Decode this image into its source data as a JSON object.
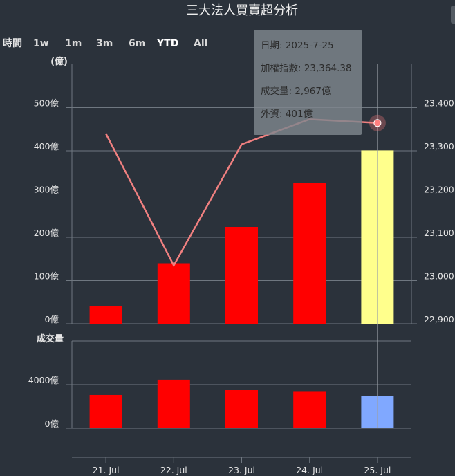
{
  "chart_data": {
    "type": "bar",
    "title": "三大法人買賣超分析",
    "range_selector": {
      "label": "時間",
      "buttons": [
        "1w",
        "1m",
        "3m",
        "6m",
        "YTD",
        "All"
      ],
      "selected": "YTD"
    },
    "categories": [
      "21. Jul",
      "22. Jul",
      "23. Jul",
      "24. Jul",
      "25. Jul"
    ],
    "main_axis": {
      "label": "(億)",
      "ylim": [
        0,
        600
      ],
      "ticks": [
        0,
        100,
        200,
        300,
        400,
        500
      ],
      "tick_labels": [
        "0億",
        "100億",
        "200億",
        "300億",
        "400億",
        "500億"
      ]
    },
    "right_axis": {
      "ylim": [
        22900,
        23500
      ],
      "ticks": [
        22900,
        23000,
        23100,
        23200,
        23300,
        23400
      ],
      "tick_labels": [
        "22,900",
        "23,000",
        "23,100",
        "23,200",
        "23,300",
        "23,400"
      ]
    },
    "volume_axis": {
      "label": "成交量",
      "ylim": [
        0,
        8000
      ],
      "ticks": [
        0,
        4000
      ],
      "tick_labels": [
        "0億",
        "4000億"
      ]
    },
    "series": [
      {
        "name": "外資",
        "type": "bar",
        "axis": "main",
        "values": [
          40,
          140,
          224,
          325,
          401
        ],
        "color": "#ff0000"
      },
      {
        "name": "加權指數",
        "type": "line",
        "axis": "right",
        "values": [
          23340,
          23035,
          23315,
          23373,
          23364.38
        ],
        "color": "#f08080"
      },
      {
        "name": "成交量",
        "type": "bar",
        "axis": "volume",
        "values": [
          3050,
          4450,
          3550,
          3400,
          2967
        ],
        "color": "#ff0000"
      }
    ],
    "highlight": {
      "index": 4,
      "bar_color": "#ffff8c",
      "volume_color": "#80a8ff",
      "marker_color": "#ff7f7f"
    },
    "tooltip": {
      "lines": [
        "日期: 2025-7-25",
        "加權指數: 23,364.38",
        "成交量: 2,967億",
        "外資: 401億"
      ]
    },
    "grid": true
  }
}
